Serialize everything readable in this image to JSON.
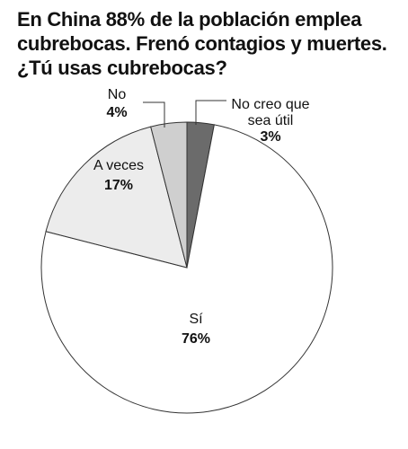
{
  "title": "En China 88% de la población emplea cubrebocas. Frenó contagios y muertes. ¿Tú usas cubrebocas?",
  "chart_data": {
    "type": "pie",
    "title": "En China 88% de la población emplea cubrebocas. Frenó contagios y muertes. ¿Tú usas cubrebocas?",
    "slices": [
      {
        "label": "No creo que sea útil",
        "label_lines": [
          "No creo que",
          "sea útil"
        ],
        "value": 3,
        "value_label": "3%",
        "color": "#6b6b6b"
      },
      {
        "label": "Sí",
        "label_lines": [
          "Sí"
        ],
        "value": 76,
        "value_label": "76%",
        "color": "#ffffff"
      },
      {
        "label": "A veces",
        "label_lines": [
          "A veces"
        ],
        "value": 17,
        "value_label": "17%",
        "color": "#ececec"
      },
      {
        "label": "No",
        "label_lines": [
          "No"
        ],
        "value": 4,
        "value_label": "4%",
        "color": "#cfcfcf"
      }
    ],
    "start": "top",
    "direction": "clockwise"
  }
}
